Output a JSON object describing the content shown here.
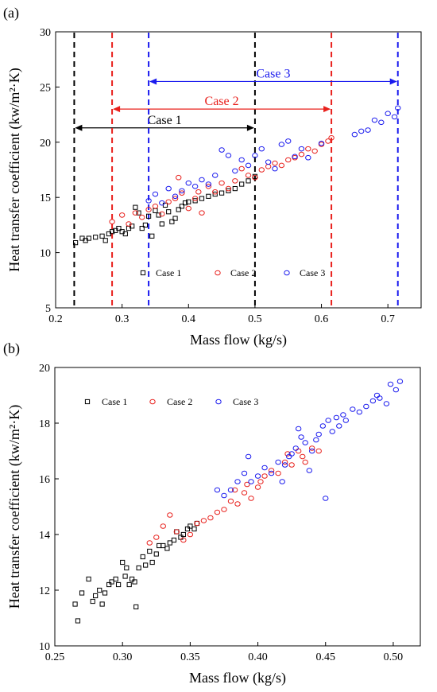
{
  "chart_data": [
    {
      "panel_label": "(a)",
      "type": "scatter",
      "xlabel": "Mass flow (kg/s)",
      "ylabel": "Heat transfer coefficient (kw/m²·K)",
      "xlim": [
        0.2,
        0.75
      ],
      "ylim": [
        5,
        30
      ],
      "xticks": [
        "0.2",
        "0.3",
        "0.4",
        "0.5",
        "0.6",
        "0.7"
      ],
      "yticks": [
        "5",
        "10",
        "15",
        "20",
        "25",
        "30"
      ],
      "legend_position": "bottom",
      "colors": {
        "Case 1": "#000000",
        "Case 2": "#e8201c",
        "Case 3": "#1a1aee"
      },
      "ranges": [
        {
          "name": "Case 1",
          "from": 0.228,
          "to": 0.5,
          "y": 21.3
        },
        {
          "name": "Case 2",
          "from": 0.285,
          "to": 0.615,
          "y": 23.0
        },
        {
          "name": "Case 3",
          "from": 0.34,
          "to": 0.715,
          "y": 25.5
        }
      ],
      "series": [
        {
          "name": "Case 1",
          "marker": "square",
          "points": [
            [
              0.23,
              10.9
            ],
            [
              0.24,
              11.3
            ],
            [
              0.245,
              11.1
            ],
            [
              0.25,
              11.3
            ],
            [
              0.26,
              11.4
            ],
            [
              0.27,
              11.5
            ],
            [
              0.275,
              11.1
            ],
            [
              0.28,
              11.7
            ],
            [
              0.285,
              11.9
            ],
            [
              0.29,
              12.0
            ],
            [
              0.295,
              12.2
            ],
            [
              0.3,
              11.9
            ],
            [
              0.305,
              11.7
            ],
            [
              0.31,
              12.2
            ],
            [
              0.315,
              12.4
            ],
            [
              0.32,
              14.1
            ],
            [
              0.325,
              13.6
            ],
            [
              0.33,
              12.2
            ],
            [
              0.335,
              12.5
            ],
            [
              0.34,
              13.3
            ],
            [
              0.345,
              11.5
            ],
            [
              0.35,
              13.8
            ],
            [
              0.355,
              13.4
            ],
            [
              0.36,
              12.6
            ],
            [
              0.365,
              14.3
            ],
            [
              0.37,
              13.7
            ],
            [
              0.375,
              12.8
            ],
            [
              0.38,
              13.1
            ],
            [
              0.385,
              13.9
            ],
            [
              0.39,
              14.2
            ],
            [
              0.395,
              14.5
            ],
            [
              0.4,
              14.6
            ],
            [
              0.41,
              14.7
            ],
            [
              0.42,
              14.9
            ],
            [
              0.43,
              15.1
            ],
            [
              0.44,
              15.3
            ],
            [
              0.45,
              15.4
            ],
            [
              0.46,
              15.6
            ],
            [
              0.47,
              15.8
            ],
            [
              0.48,
              16.2
            ],
            [
              0.49,
              16.5
            ],
            [
              0.5,
              16.9
            ]
          ]
        },
        {
          "name": "Case 2",
          "marker": "circle",
          "points": [
            [
              0.285,
              12.8
            ],
            [
              0.3,
              13.4
            ],
            [
              0.31,
              12.6
            ],
            [
              0.32,
              13.6
            ],
            [
              0.33,
              13.2
            ],
            [
              0.34,
              13.9
            ],
            [
              0.35,
              14.2
            ],
            [
              0.36,
              13.5
            ],
            [
              0.37,
              14.6
            ],
            [
              0.38,
              14.9
            ],
            [
              0.385,
              16.8
            ],
            [
              0.39,
              15.4
            ],
            [
              0.4,
              14.0
            ],
            [
              0.41,
              14.9
            ],
            [
              0.415,
              15.5
            ],
            [
              0.42,
              13.6
            ],
            [
              0.43,
              16.0
            ],
            [
              0.44,
              15.5
            ],
            [
              0.45,
              16.3
            ],
            [
              0.46,
              15.8
            ],
            [
              0.47,
              16.5
            ],
            [
              0.48,
              17.6
            ],
            [
              0.49,
              17.0
            ],
            [
              0.5,
              16.8
            ],
            [
              0.51,
              17.5
            ],
            [
              0.52,
              17.8
            ],
            [
              0.53,
              18.1
            ],
            [
              0.54,
              17.9
            ],
            [
              0.55,
              18.4
            ],
            [
              0.56,
              18.6
            ],
            [
              0.57,
              18.9
            ],
            [
              0.58,
              19.4
            ],
            [
              0.59,
              19.2
            ],
            [
              0.6,
              19.8
            ],
            [
              0.61,
              20.1
            ],
            [
              0.615,
              20.4
            ]
          ]
        },
        {
          "name": "Case 3",
          "marker": "circle",
          "points": [
            [
              0.34,
              14.7
            ],
            [
              0.35,
              15.3
            ],
            [
              0.36,
              14.5
            ],
            [
              0.37,
              15.8
            ],
            [
              0.38,
              15.1
            ],
            [
              0.39,
              15.6
            ],
            [
              0.4,
              16.3
            ],
            [
              0.41,
              16.0
            ],
            [
              0.42,
              16.6
            ],
            [
              0.43,
              16.2
            ],
            [
              0.44,
              17.0
            ],
            [
              0.45,
              19.3
            ],
            [
              0.46,
              18.8
            ],
            [
              0.47,
              17.4
            ],
            [
              0.48,
              18.4
            ],
            [
              0.49,
              17.9
            ],
            [
              0.5,
              18.8
            ],
            [
              0.51,
              19.4
            ],
            [
              0.52,
              18.2
            ],
            [
              0.53,
              17.6
            ],
            [
              0.54,
              19.8
            ],
            [
              0.55,
              20.1
            ],
            [
              0.56,
              18.7
            ],
            [
              0.57,
              19.4
            ],
            [
              0.58,
              18.6
            ],
            [
              0.6,
              19.9
            ],
            [
              0.65,
              20.7
            ],
            [
              0.66,
              21.0
            ],
            [
              0.67,
              21.1
            ],
            [
              0.68,
              22.0
            ],
            [
              0.69,
              21.8
            ],
            [
              0.7,
              22.6
            ],
            [
              0.71,
              22.3
            ],
            [
              0.715,
              23.1
            ]
          ]
        }
      ]
    },
    {
      "panel_label": "(b)",
      "type": "scatter",
      "xlabel": "Mass flow (kg/s)",
      "ylabel": "Heat transfer coefficient (kw/m²·K)",
      "xlim": [
        0.25,
        0.52
      ],
      "ylim": [
        10,
        20
      ],
      "xticks": [
        "0.25",
        "0.30",
        "0.35",
        "0.40",
        "0.45",
        "0.50"
      ],
      "yticks": [
        "10",
        "12",
        "14",
        "16",
        "18",
        "20"
      ],
      "legend_position": "top-left",
      "colors": {
        "Case 1": "#000000",
        "Case 2": "#e8201c",
        "Case 3": "#1a1aee"
      },
      "series": [
        {
          "name": "Case 1",
          "marker": "square",
          "points": [
            [
              0.265,
              11.5
            ],
            [
              0.267,
              10.9
            ],
            [
              0.27,
              11.9
            ],
            [
              0.275,
              12.4
            ],
            [
              0.278,
              11.6
            ],
            [
              0.28,
              11.8
            ],
            [
              0.283,
              12.0
            ],
            [
              0.285,
              11.5
            ],
            [
              0.287,
              11.9
            ],
            [
              0.29,
              12.2
            ],
            [
              0.292,
              12.3
            ],
            [
              0.295,
              12.4
            ],
            [
              0.297,
              12.2
            ],
            [
              0.3,
              13.0
            ],
            [
              0.302,
              12.5
            ],
            [
              0.303,
              12.8
            ],
            [
              0.305,
              12.2
            ],
            [
              0.307,
              12.4
            ],
            [
              0.309,
              12.3
            ],
            [
              0.31,
              11.4
            ],
            [
              0.312,
              12.8
            ],
            [
              0.315,
              13.2
            ],
            [
              0.317,
              12.9
            ],
            [
              0.32,
              13.4
            ],
            [
              0.322,
              13.0
            ],
            [
              0.325,
              13.3
            ],
            [
              0.327,
              13.6
            ],
            [
              0.33,
              13.6
            ],
            [
              0.333,
              13.5
            ],
            [
              0.335,
              13.7
            ],
            [
              0.338,
              13.8
            ],
            [
              0.34,
              14.1
            ],
            [
              0.343,
              13.9
            ],
            [
              0.345,
              14.0
            ],
            [
              0.348,
              14.2
            ],
            [
              0.35,
              14.3
            ],
            [
              0.353,
              14.2
            ],
            [
              0.355,
              14.4
            ]
          ]
        },
        {
          "name": "Case 2",
          "marker": "circle",
          "points": [
            [
              0.32,
              13.7
            ],
            [
              0.325,
              13.9
            ],
            [
              0.33,
              14.3
            ],
            [
              0.335,
              14.7
            ],
            [
              0.34,
              14.1
            ],
            [
              0.345,
              13.8
            ],
            [
              0.35,
              14.0
            ],
            [
              0.355,
              14.4
            ],
            [
              0.36,
              14.5
            ],
            [
              0.365,
              14.6
            ],
            [
              0.37,
              14.8
            ],
            [
              0.375,
              14.9
            ],
            [
              0.38,
              15.2
            ],
            [
              0.383,
              15.6
            ],
            [
              0.385,
              15.1
            ],
            [
              0.39,
              15.5
            ],
            [
              0.392,
              15.8
            ],
            [
              0.395,
              15.3
            ],
            [
              0.4,
              15.7
            ],
            [
              0.402,
              15.9
            ],
            [
              0.405,
              16.1
            ],
            [
              0.41,
              16.3
            ],
            [
              0.415,
              16.2
            ],
            [
              0.42,
              16.6
            ],
            [
              0.422,
              16.9
            ],
            [
              0.425,
              16.5
            ],
            [
              0.43,
              17.0
            ],
            [
              0.433,
              16.8
            ],
            [
              0.435,
              16.6
            ],
            [
              0.44,
              17.1
            ],
            [
              0.445,
              17.0
            ]
          ]
        },
        {
          "name": "Case 3",
          "marker": "circle",
          "points": [
            [
              0.37,
              15.6
            ],
            [
              0.375,
              15.4
            ],
            [
              0.38,
              15.6
            ],
            [
              0.385,
              15.9
            ],
            [
              0.39,
              16.2
            ],
            [
              0.393,
              16.8
            ],
            [
              0.395,
              15.9
            ],
            [
              0.4,
              16.1
            ],
            [
              0.405,
              16.4
            ],
            [
              0.41,
              16.2
            ],
            [
              0.415,
              16.6
            ],
            [
              0.418,
              15.9
            ],
            [
              0.42,
              16.5
            ],
            [
              0.423,
              16.8
            ],
            [
              0.425,
              16.9
            ],
            [
              0.428,
              17.1
            ],
            [
              0.43,
              17.8
            ],
            [
              0.432,
              17.5
            ],
            [
              0.435,
              17.3
            ],
            [
              0.438,
              16.3
            ],
            [
              0.44,
              17.0
            ],
            [
              0.443,
              17.4
            ],
            [
              0.445,
              17.6
            ],
            [
              0.448,
              17.9
            ],
            [
              0.45,
              15.3
            ],
            [
              0.452,
              18.1
            ],
            [
              0.455,
              17.7
            ],
            [
              0.458,
              18.2
            ],
            [
              0.46,
              17.9
            ],
            [
              0.463,
              18.3
            ],
            [
              0.465,
              18.1
            ],
            [
              0.47,
              18.5
            ],
            [
              0.475,
              18.4
            ],
            [
              0.48,
              18.6
            ],
            [
              0.485,
              18.8
            ],
            [
              0.488,
              19.0
            ],
            [
              0.49,
              18.9
            ],
            [
              0.495,
              18.7
            ],
            [
              0.498,
              19.4
            ],
            [
              0.502,
              19.2
            ],
            [
              0.505,
              19.5
            ]
          ]
        }
      ]
    }
  ]
}
